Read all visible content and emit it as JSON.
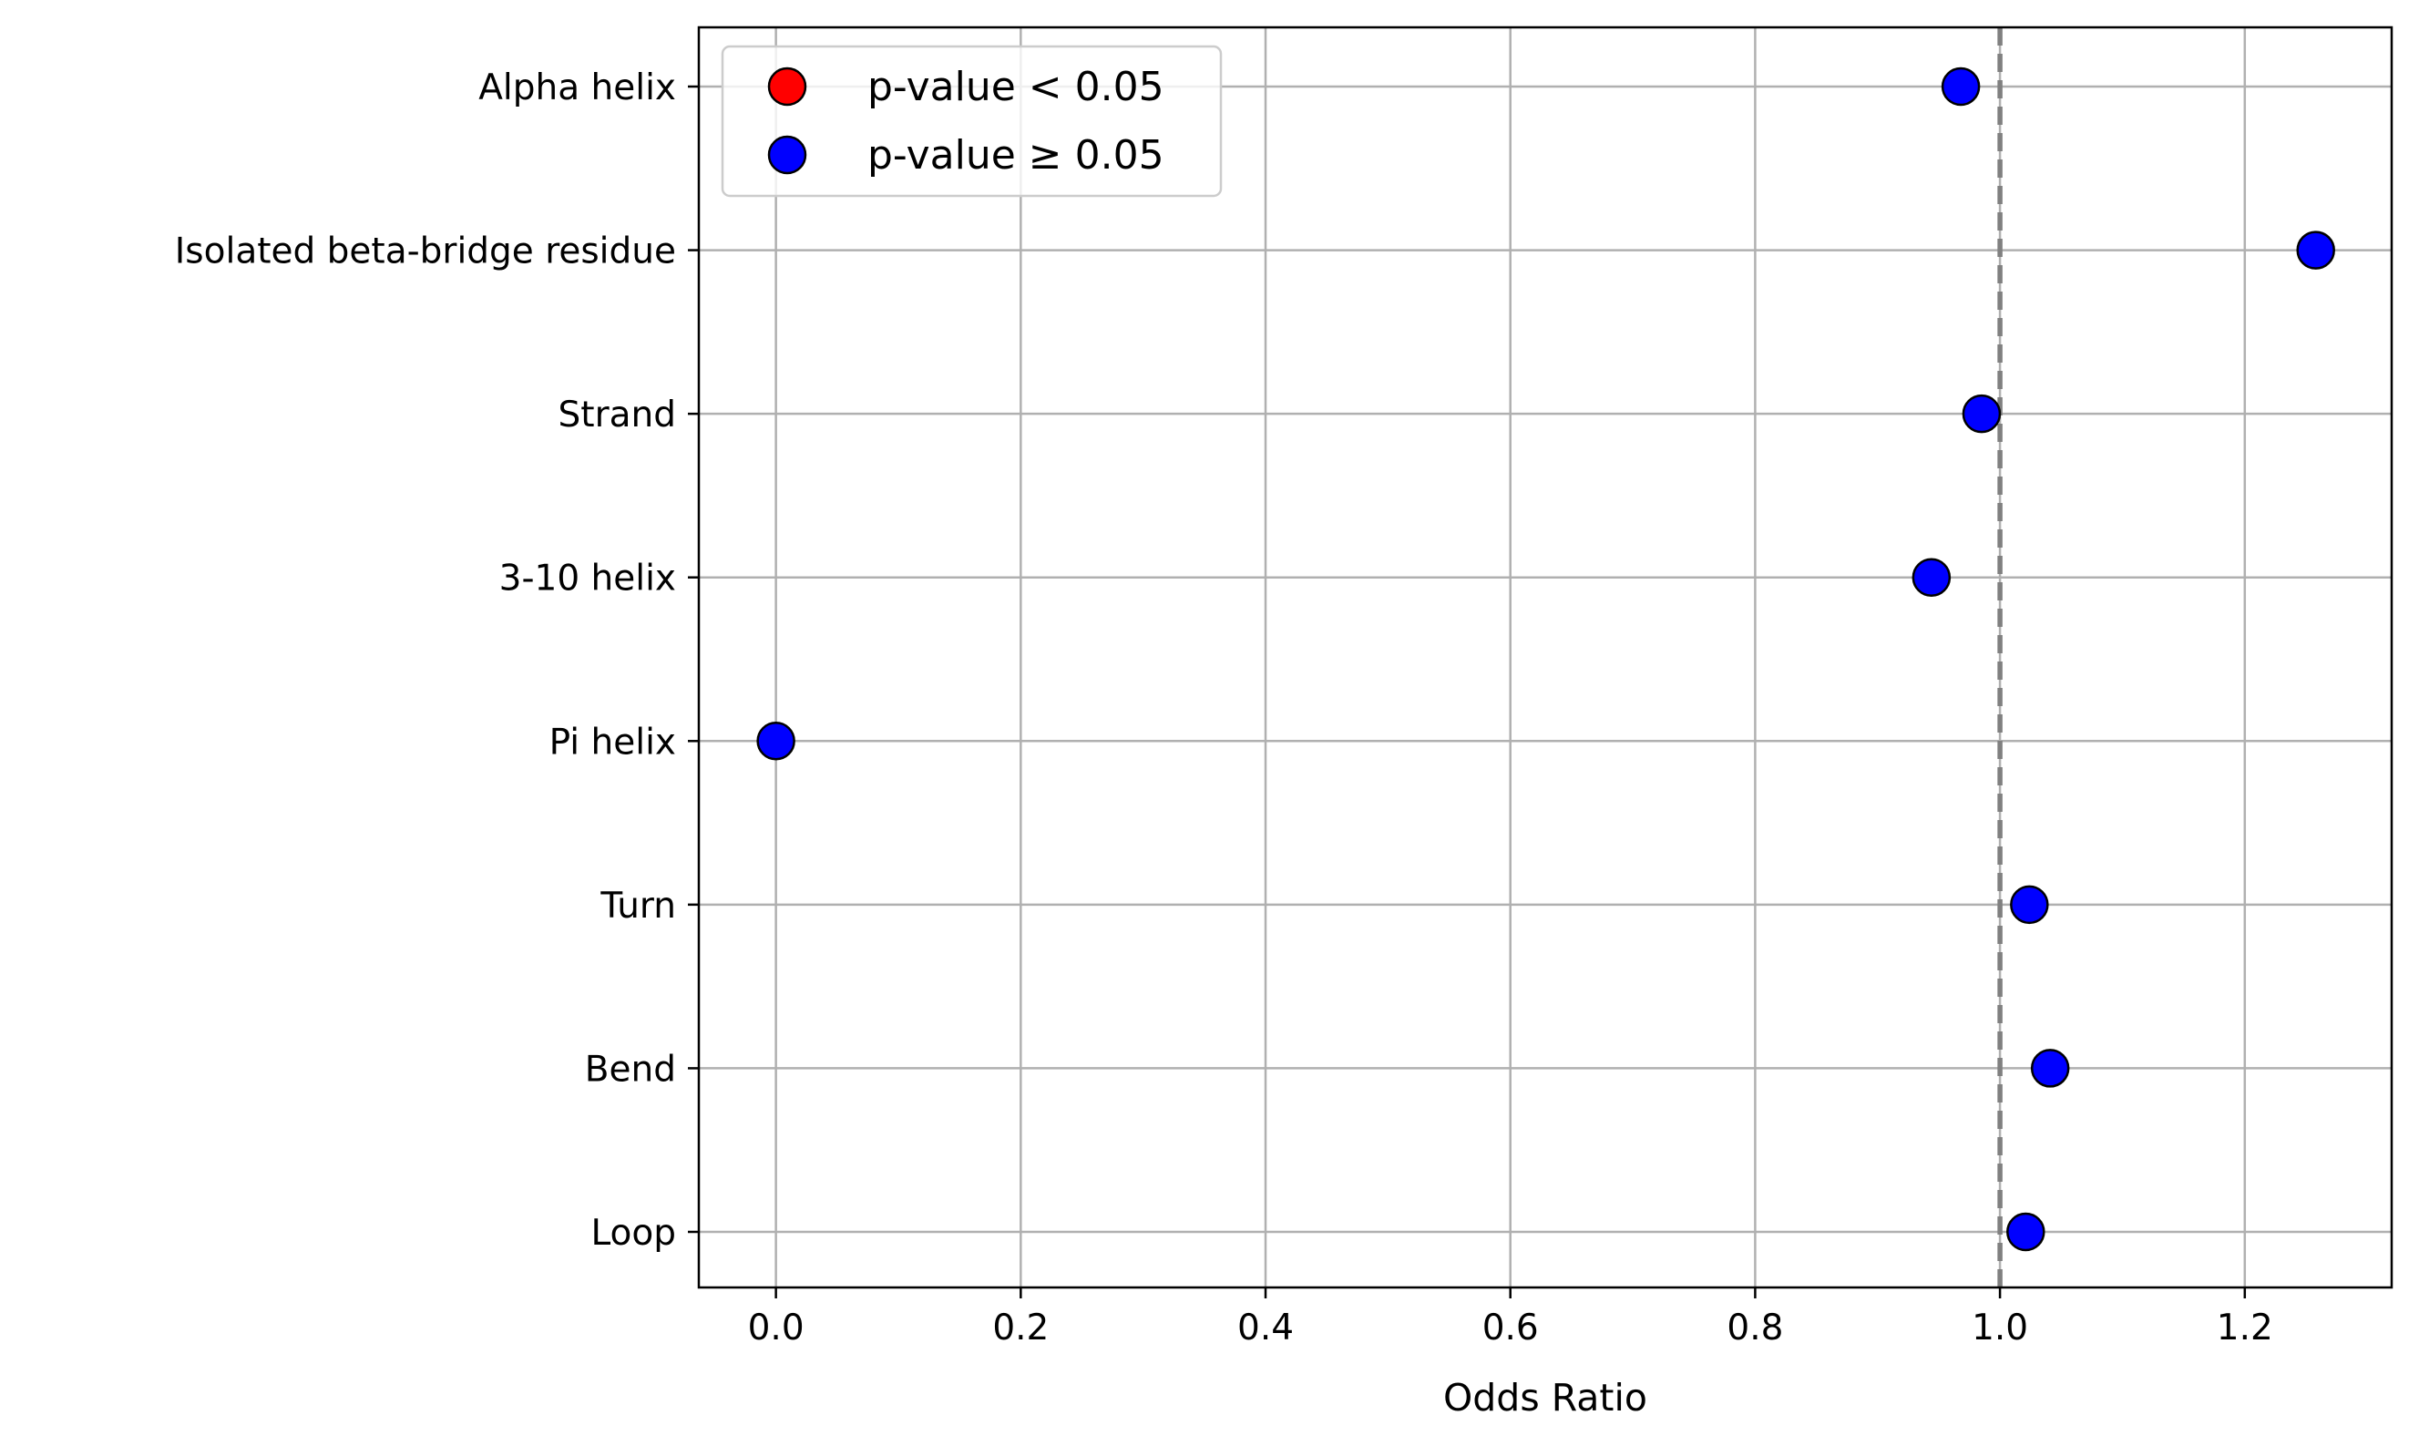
{
  "chart_data": {
    "type": "scatter",
    "xlabel": "Odds Ratio",
    "ylabel": "",
    "title": "",
    "xlim": [
      -0.063,
      1.32
    ],
    "x_ticks": [
      0.0,
      0.2,
      0.4,
      0.6,
      0.8,
      1.0,
      1.2
    ],
    "x_tick_labels": [
      "0.0",
      "0.2",
      "0.4",
      "0.6",
      "0.8",
      "1.0",
      "1.2"
    ],
    "categories": [
      "Alpha helix",
      "Isolated beta-bridge residue",
      "Strand",
      "3-10 helix",
      "Pi helix",
      "Turn",
      "Bend",
      "Loop"
    ],
    "values": [
      0.968,
      1.258,
      0.985,
      0.944,
      0.0,
      1.024,
      1.041,
      1.021
    ],
    "significant": [
      false,
      false,
      false,
      false,
      false,
      false,
      false,
      false
    ],
    "reference_line": {
      "x": 1.0,
      "style": "dashed",
      "color": "#808080"
    },
    "grid": true,
    "legend": {
      "placement": "top-left",
      "entries": [
        {
          "label": "p-value < 0.05",
          "color": "#ff0000"
        },
        {
          "label": "p-value ≥ 0.05",
          "color": "#0000ff"
        }
      ]
    },
    "colors": {
      "significant": "#ff0000",
      "not_significant": "#0000ff",
      "grid": "#b0b0b0",
      "edge": "#000000"
    }
  }
}
